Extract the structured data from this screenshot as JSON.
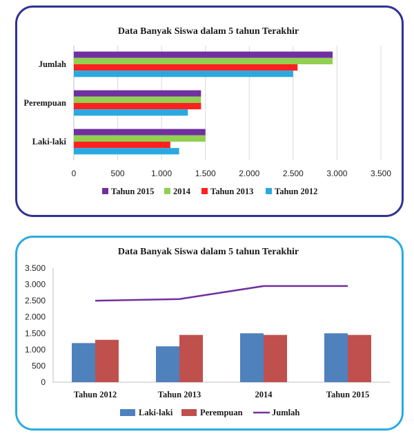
{
  "chart_data": [
    {
      "type": "bar",
      "orientation": "horizontal",
      "title": "Data Banyak Siswa dalam 5 tahun Terakhir",
      "categories": [
        "Jumlah",
        "Perempuan",
        "Laki-laki"
      ],
      "series": [
        {
          "name": "Tahun 2015",
          "color": "#7030a0",
          "values": [
            2950,
            1450,
            1500
          ]
        },
        {
          "name": "2014",
          "color": "#92d050",
          "values": [
            2950,
            1450,
            1500
          ]
        },
        {
          "name": "Tahun 2013",
          "color": "#ff2020",
          "values": [
            2550,
            1450,
            1100
          ]
        },
        {
          "name": "Tahun 2012",
          "color": "#29a9e0",
          "values": [
            2500,
            1300,
            1200
          ]
        }
      ],
      "xlim": [
        0,
        3500
      ],
      "xticks": [
        0,
        500,
        1000,
        1500,
        2000,
        2500,
        3000,
        3500
      ],
      "xtick_labels": [
        "0",
        "500",
        "1.000",
        "1.500",
        "2.000",
        "2.500",
        "3.000",
        "3.500"
      ],
      "grid": true,
      "legend": "bottom"
    },
    {
      "type": "bar",
      "title": "Data Banyak Siswa dalam 5 tahun Terakhir",
      "categories": [
        "Tahun 2012",
        "Tahun 2013",
        "2014",
        "Tahun 2015"
      ],
      "series": [
        {
          "name": "Laki-laki",
          "type": "bar",
          "color": "#4f81bd",
          "values": [
            1200,
            1100,
            1500,
            1500
          ]
        },
        {
          "name": "Perempuan",
          "type": "bar",
          "color": "#c0504d",
          "values": [
            1300,
            1450,
            1450,
            1450
          ]
        },
        {
          "name": "Jumlah",
          "type": "line",
          "color": "#7030a0",
          "values": [
            2500,
            2550,
            2950,
            2950
          ]
        }
      ],
      "ylim": [
        0,
        3500
      ],
      "yticks": [
        0,
        500,
        1000,
        1500,
        2000,
        2500,
        3000,
        3500
      ],
      "ytick_labels": [
        "0",
        "500",
        "1.000",
        "1.500",
        "2.000",
        "2.500",
        "3.000",
        "3.500"
      ],
      "grid": false,
      "legend": "bottom"
    }
  ]
}
